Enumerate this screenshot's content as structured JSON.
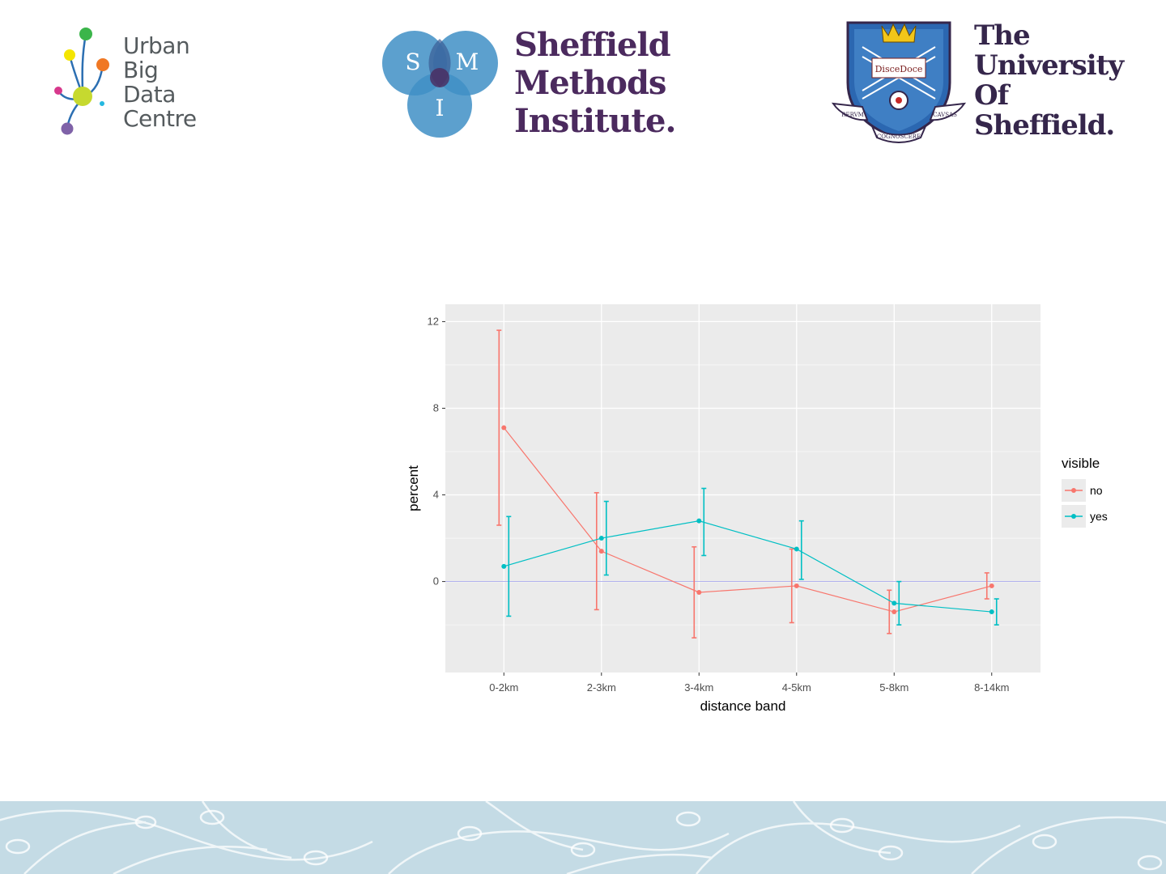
{
  "logos": {
    "ubdc": [
      "Urban",
      "Big",
      "Data",
      "Centre"
    ],
    "smi": {
      "circle_letters": [
        "S",
        "M",
        "I"
      ],
      "lines": [
        "Sheffield",
        "Methods",
        "Institute."
      ]
    },
    "tuos": {
      "lines": [
        "The",
        "University",
        "Of",
        "Sheffield."
      ],
      "crest_text": [
        "DisceDoce",
        "RERVM",
        "COGNOSCERE",
        "CAVSAS"
      ]
    }
  },
  "colors": {
    "panel_bg": "#ebebeb",
    "gridline": "#ffffff",
    "series_no": "#f8766d",
    "series_yes": "#00bfc4",
    "zero_line": "#9a9ae8",
    "footer_bg": "#c4dbe5",
    "smi_circle": "#3f8fc6",
    "smi_overlap": "#4b2a5e"
  },
  "chart_data": {
    "type": "line",
    "title": "",
    "xlabel": "distance band",
    "ylabel": "percent",
    "categories": [
      "0-2km",
      "2-3km",
      "3-4km",
      "4-5km",
      "5-8km",
      "8-14km"
    ],
    "ylim": [
      -4.2,
      12.8
    ],
    "yticks": [
      0,
      4,
      8,
      12
    ],
    "yhline": 0,
    "grid": true,
    "legend": {
      "title": "visible",
      "position": "right"
    },
    "error_bars": true,
    "series": [
      {
        "name": "no",
        "color": "#f8766d",
        "values": [
          7.1,
          1.4,
          -0.5,
          -0.2,
          -1.4,
          -0.2
        ],
        "lower": [
          2.6,
          -1.3,
          -2.6,
          -1.9,
          -2.4,
          -0.8
        ],
        "upper": [
          11.6,
          4.1,
          1.6,
          1.5,
          -0.4,
          0.4
        ]
      },
      {
        "name": "yes",
        "color": "#00bfc4",
        "values": [
          0.7,
          2.0,
          2.8,
          1.5,
          -1.0,
          -1.4
        ],
        "lower": [
          -1.6,
          0.3,
          1.2,
          0.1,
          -2.0,
          -2.0
        ],
        "upper": [
          3.0,
          3.7,
          4.3,
          2.8,
          0.0,
          -0.8
        ]
      }
    ]
  }
}
